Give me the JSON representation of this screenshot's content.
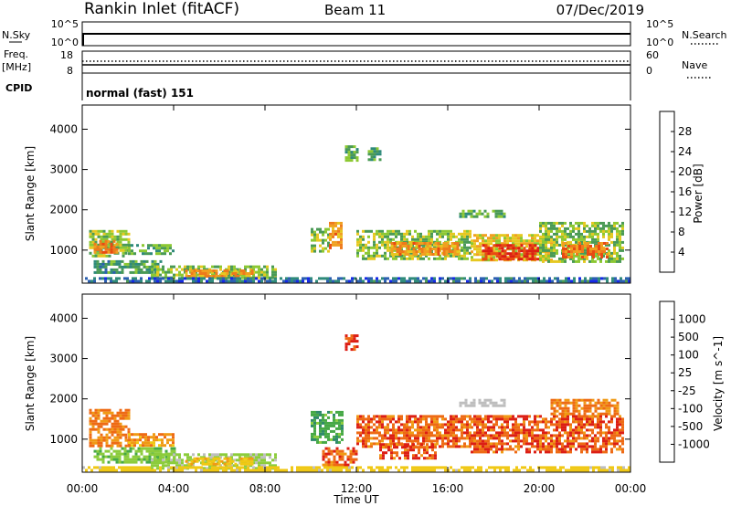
{
  "header": {
    "station": "Rankin Inlet (fitACF)",
    "beam": "Beam 11",
    "date": "07/Dec/2019"
  },
  "strips": {
    "nsky": {
      "left_label": "N.Sky",
      "right_label": "N.Search",
      "left_ticks": [
        "10^5",
        "10^0"
      ],
      "right_ticks": [
        "10^5",
        "10^0"
      ]
    },
    "freq": {
      "left_label_1": "Freq.",
      "left_label_2": "[MHz]",
      "left_ticks": [
        "18",
        "8"
      ],
      "right_label": "Nave",
      "right_ticks": [
        "60",
        "0"
      ]
    },
    "cpid": {
      "label": "CPID",
      "value": "normal (fast) 151"
    }
  },
  "chart_data": [
    {
      "type": "heatmap",
      "title": "",
      "xlabel": "Time UT",
      "ylabel": "Slant Range [km]",
      "xlim": [
        0,
        24
      ],
      "ylim": [
        180,
        4600
      ],
      "x_ticks": [
        "00:00",
        "04:00",
        "08:00",
        "12:00",
        "16:00",
        "20:00",
        "00:00"
      ],
      "x_tick_values": [
        0,
        4,
        8,
        12,
        16,
        20,
        24
      ],
      "y_ticks": [
        "1000",
        "2000",
        "3000",
        "4000"
      ],
      "y_tick_values": [
        1000,
        2000,
        3000,
        4000
      ],
      "colorbar": {
        "label": "Power [dB]",
        "range": [
          0,
          32
        ],
        "ticks": [
          "4",
          "8",
          "12",
          "16",
          "20",
          "24",
          "28"
        ],
        "tick_values": [
          4,
          8,
          12,
          16,
          20,
          24,
          28
        ],
        "colors": [
          "#1428e6",
          "#2a5fb0",
          "#2e8a7a",
          "#4a9a55",
          "#8cc832",
          "#e6c820",
          "#f0a020",
          "#ee7a1c",
          "#e84a12",
          "#dc1e14"
        ]
      },
      "regions": [
        {
          "t0": 0.3,
          "t1": 2.0,
          "r0": 850,
          "r1": 1500,
          "value": 14
        },
        {
          "t0": 0.5,
          "t1": 1.5,
          "r0": 950,
          "r1": 1250,
          "value": 24
        },
        {
          "t0": 2.0,
          "t1": 4.0,
          "r0": 900,
          "r1": 1150,
          "value": 12
        },
        {
          "t0": 0.5,
          "t1": 3.5,
          "r0": 450,
          "r1": 750,
          "value": 10
        },
        {
          "t0": 3.0,
          "t1": 8.5,
          "r0": 280,
          "r1": 620,
          "value": 14
        },
        {
          "t0": 4.5,
          "t1": 7.5,
          "r0": 320,
          "r1": 520,
          "value": 22
        },
        {
          "t0": 10.0,
          "t1": 10.8,
          "r0": 950,
          "r1": 1550,
          "value": 14
        },
        {
          "t0": 10.8,
          "t1": 11.4,
          "r0": 1050,
          "r1": 1700,
          "value": 22
        },
        {
          "t0": 11.5,
          "t1": 12.1,
          "r0": 3200,
          "r1": 3600,
          "value": 12
        },
        {
          "t0": 12.5,
          "t1": 13.0,
          "r0": 3250,
          "r1": 3550,
          "value": 10
        },
        {
          "t0": 12.0,
          "t1": 17.0,
          "r0": 800,
          "r1": 1500,
          "value": 14
        },
        {
          "t0": 13.5,
          "t1": 16.5,
          "r0": 900,
          "r1": 1200,
          "value": 22
        },
        {
          "t0": 17.0,
          "t1": 20.5,
          "r0": 750,
          "r1": 1400,
          "value": 18
        },
        {
          "t0": 17.5,
          "t1": 20.0,
          "r0": 800,
          "r1": 1150,
          "value": 30
        },
        {
          "t0": 20.0,
          "t1": 23.7,
          "r0": 700,
          "r1": 1700,
          "value": 14
        },
        {
          "t0": 21.0,
          "t1": 23.0,
          "r0": 850,
          "r1": 1200,
          "value": 24
        },
        {
          "t0": 16.5,
          "t1": 18.5,
          "r0": 1850,
          "r1": 2000,
          "value": 12
        },
        {
          "t0": 0.0,
          "t1": 24.0,
          "r0": 200,
          "r1": 330,
          "value": 6
        }
      ]
    },
    {
      "type": "heatmap",
      "title": "",
      "xlabel": "Time UT",
      "ylabel": "Slant Range [km]",
      "xlim": [
        0,
        24
      ],
      "ylim": [
        180,
        4600
      ],
      "x_ticks": [
        "00:00",
        "04:00",
        "08:00",
        "12:00",
        "16:00",
        "20:00",
        "00:00"
      ],
      "x_tick_values": [
        0,
        4,
        8,
        12,
        16,
        20,
        24
      ],
      "y_ticks": [
        "1000",
        "2000",
        "3000",
        "4000"
      ],
      "y_tick_values": [
        1000,
        2000,
        3000,
        4000
      ],
      "colorbar": {
        "label": "Velocity [m s^-1]",
        "ticks": [
          "1000",
          "500",
          "100",
          "25",
          "-25",
          "-100",
          "-500",
          "-1000"
        ],
        "colors": [
          "#1e3cdc",
          "#2a6ab4",
          "#2e8a6a",
          "#46a846",
          "#8ccc3c",
          "#bebebe",
          "#f0c814",
          "#f09a14",
          "#ee6a14",
          "#dc1e14"
        ]
      },
      "regions": [
        {
          "t0": 0.3,
          "t1": 2.0,
          "r0": 850,
          "r1": 1750,
          "value": -300
        },
        {
          "t0": 2.0,
          "t1": 4.0,
          "r0": 850,
          "r1": 1150,
          "value": -200
        },
        {
          "t0": 0.5,
          "t1": 4.0,
          "r0": 450,
          "r1": 800,
          "value": 80
        },
        {
          "t0": 3.0,
          "t1": 8.5,
          "r0": 300,
          "r1": 650,
          "value": 40
        },
        {
          "t0": 4.5,
          "t1": 7.5,
          "r0": 350,
          "r1": 550,
          "value": -80
        },
        {
          "t0": 10.0,
          "t1": 11.4,
          "r0": 950,
          "r1": 1700,
          "value": 200
        },
        {
          "t0": 10.5,
          "t1": 12.0,
          "r0": 350,
          "r1": 800,
          "value": -400
        },
        {
          "t0": 11.5,
          "t1": 12.1,
          "r0": 3200,
          "r1": 3600,
          "value": -600
        },
        {
          "t0": 12.0,
          "t1": 17.0,
          "r0": 850,
          "r1": 1600,
          "value": -400
        },
        {
          "t0": 13.0,
          "t1": 15.5,
          "r0": 500,
          "r1": 900,
          "value": -500
        },
        {
          "t0": 17.0,
          "t1": 23.7,
          "r0": 650,
          "r1": 1600,
          "value": -450
        },
        {
          "t0": 20.5,
          "t1": 23.5,
          "r0": 1600,
          "r1": 2000,
          "value": -300
        },
        {
          "t0": 16.5,
          "t1": 18.5,
          "r0": 1850,
          "r1": 2000,
          "value": 10
        },
        {
          "t0": 0.0,
          "t1": 24.0,
          "r0": 200,
          "r1": 330,
          "value": -50
        }
      ]
    }
  ]
}
